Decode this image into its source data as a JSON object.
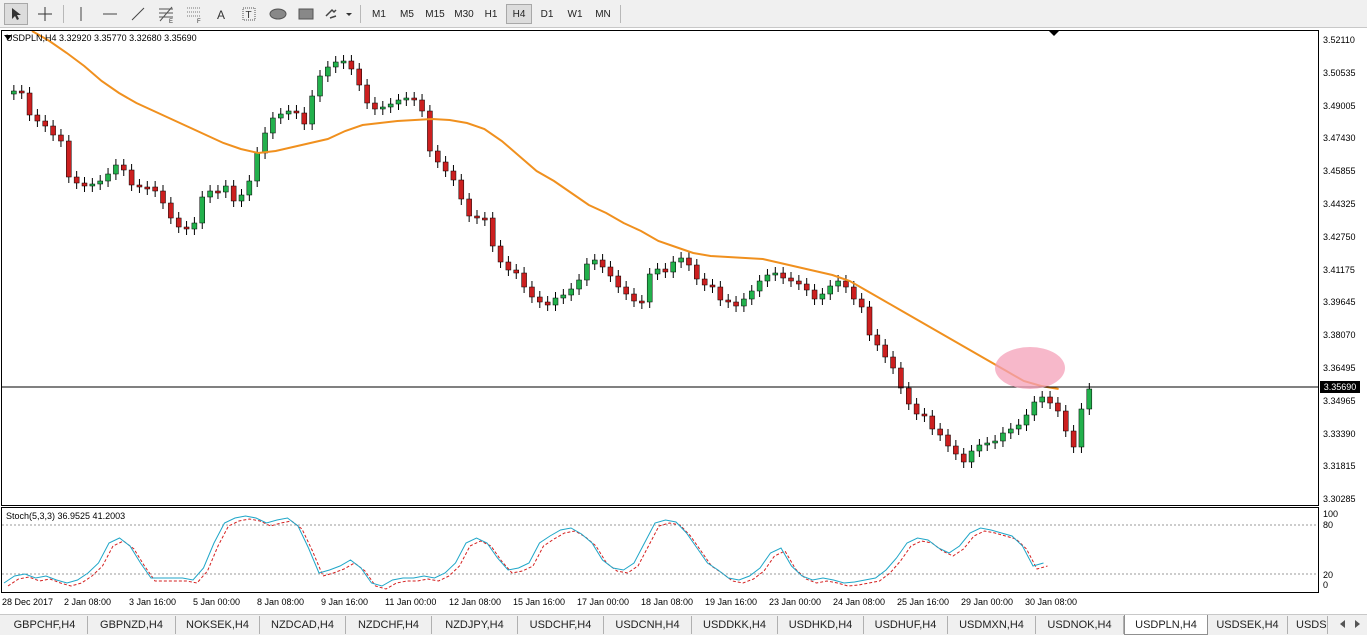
{
  "toolbar": {
    "tools": [
      "cursor-icon",
      "crosshair-icon",
      "vertical-line-icon",
      "horizontal-line-icon",
      "trendline-icon",
      "fibonacci-icon",
      "fibonacci-fan-icon",
      "text-icon",
      "text-label-icon",
      "ellipse-icon",
      "rectangle-icon",
      "arrows-icon"
    ],
    "timeframes": [
      "M1",
      "M5",
      "M15",
      "M30",
      "H1",
      "H4",
      "D1",
      "W1",
      "MN"
    ],
    "active_timeframe": "H4"
  },
  "chart": {
    "info": "USDPLN,H4  3.32920 3.35770 3.32680 3.35690",
    "current_price": "3.35690",
    "price_labels": [
      "3.52110",
      "3.50535",
      "3.49005",
      "3.47430",
      "3.45855",
      "3.44325",
      "3.42750",
      "3.41175",
      "3.39645",
      "3.38070",
      "3.36495",
      "3.34965",
      "3.33390",
      "3.31815",
      "3.30285"
    ],
    "time_labels": [
      "28 Dec 2017",
      "2 Jan 08:00",
      "3 Jan 16:00",
      "5 Jan 00:00",
      "8 Jan 08:00",
      "9 Jan 16:00",
      "11 Jan 00:00",
      "12 Jan 08:00",
      "15 Jan 16:00",
      "17 Jan 00:00",
      "18 Jan 08:00",
      "19 Jan 16:00",
      "23 Jan 00:00",
      "24 Jan 08:00",
      "25 Jan 16:00",
      "29 Jan 00:00",
      "30 Jan 08:00"
    ],
    "colors": {
      "bull": "#22b14c",
      "bear": "#cc1f1f",
      "ma": "#f0901e",
      "highlight": "#f4a0b8",
      "stoch_main": "#1fa6c8",
      "stoch_signal": "#d42020"
    }
  },
  "stochastic": {
    "info": "Stoch(5,3,3) 36.9525 41.2003",
    "levels": [
      "100",
      "80",
      "20",
      "0"
    ]
  },
  "tabs": {
    "items": [
      "GBPCHF,H4",
      "GBPNZD,H4",
      "NOKSEK,H4",
      "NZDCAD,H4",
      "NZDCHF,H4",
      "NZDJPY,H4",
      "USDCHF,H4",
      "USDCNH,H4",
      "USDDKK,H4",
      "USDHKD,H4",
      "USDHUF,H4",
      "USDMXN,H4",
      "USDNOK,H4",
      "USDPLN,H4",
      "USDSEK,H4",
      "USDS"
    ],
    "active": "USDPLN,H4"
  }
}
